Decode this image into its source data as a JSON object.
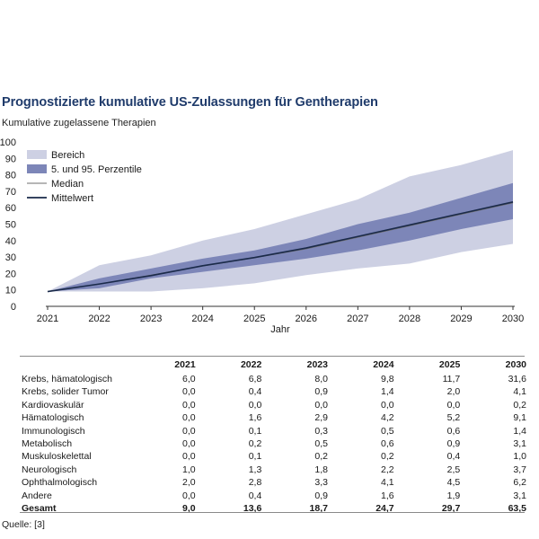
{
  "title": "Prognostizierte kumulative US-Zulassungen für Gentherapien",
  "subtitle": "Kumulative zugelassene Therapien",
  "source": "Quelle: [3]",
  "colors": {
    "range": "#cdd0e3",
    "percentile": "#7d86b8",
    "median": "#6e6e6e",
    "mean": "#1a2a4a",
    "title": "#1f3b6b"
  },
  "chart_data": {
    "type": "area",
    "title": "Prognostizierte kumulative US-Zulassungen für Gentherapien",
    "ylabel": "Kumulative zugelassene Therapien",
    "xlabel": "Jahr",
    "x": [
      2021,
      2022,
      2023,
      2024,
      2025,
      2026,
      2027,
      2028,
      2029,
      2030
    ],
    "xlim": [
      2021,
      2030
    ],
    "ylim": [
      0,
      100
    ],
    "yticks": [
      0,
      10,
      20,
      30,
      40,
      50,
      60,
      70,
      80,
      90,
      100
    ],
    "legend_position": "top-left",
    "series": [
      {
        "name": "Bereich",
        "kind": "band",
        "lower": [
          9,
          9,
          9,
          11,
          14,
          19,
          23,
          26,
          33,
          38
        ],
        "upper": [
          9,
          25,
          31,
          40,
          47,
          56,
          65,
          79,
          86,
          95
        ]
      },
      {
        "name": "5. und 95. Perzentile",
        "kind": "band",
        "lower": [
          9,
          11,
          17,
          21,
          25,
          29,
          34,
          40,
          47,
          53
        ],
        "upper": [
          9,
          17,
          23,
          29,
          34,
          41,
          50,
          57,
          66,
          75
        ]
      },
      {
        "name": "Median",
        "kind": "line",
        "values": [
          9,
          13.5,
          19,
          24.5,
          29.5,
          35,
          42,
          49,
          56,
          63
        ]
      },
      {
        "name": "Mittelwert",
        "kind": "line",
        "values": [
          9,
          13.6,
          18.7,
          24.7,
          29.7,
          35.5,
          42.5,
          49.5,
          56.5,
          63.5
        ]
      }
    ]
  },
  "table": {
    "headers": [
      "",
      "2021",
      "2022",
      "2023",
      "2024",
      "2025",
      "2030"
    ],
    "rows": [
      [
        "Krebs, hämatologisch",
        "6,0",
        "6,8",
        "8,0",
        "9,8",
        "11,7",
        "31,6"
      ],
      [
        "Krebs, solider Tumor",
        "0,0",
        "0,4",
        "0,9",
        "1,4",
        "2,0",
        "4,1"
      ],
      [
        "Kardiovaskulär",
        "0,0",
        "0,0",
        "0,0",
        "0,0",
        "0,0",
        "0,2"
      ],
      [
        "Hämatologisch",
        "0,0",
        "1,6",
        "2,9",
        "4,2",
        "5,2",
        "9,1"
      ],
      [
        "Immunologisch",
        "0,0",
        "0,1",
        "0,3",
        "0,5",
        "0,6",
        "1,4"
      ],
      [
        "Metabolisch",
        "0,0",
        "0,2",
        "0,5",
        "0,6",
        "0,9",
        "3,1"
      ],
      [
        "Muskuloskelettal",
        "0,0",
        "0,1",
        "0,2",
        "0,2",
        "0,4",
        "1,0"
      ],
      [
        "Neurologisch",
        "1,0",
        "1,3",
        "1,8",
        "2,2",
        "2,5",
        "3,7"
      ],
      [
        "Ophthalmologisch",
        "2,0",
        "2,8",
        "3,3",
        "4,1",
        "4,5",
        "6,2"
      ],
      [
        "Andere",
        "0,0",
        "0,4",
        "0,9",
        "1,6",
        "1,9",
        "3,1"
      ]
    ],
    "total": [
      "Gesamt",
      "9,0",
      "13,6",
      "18,7",
      "24,7",
      "29,7",
      "63,5"
    ]
  }
}
